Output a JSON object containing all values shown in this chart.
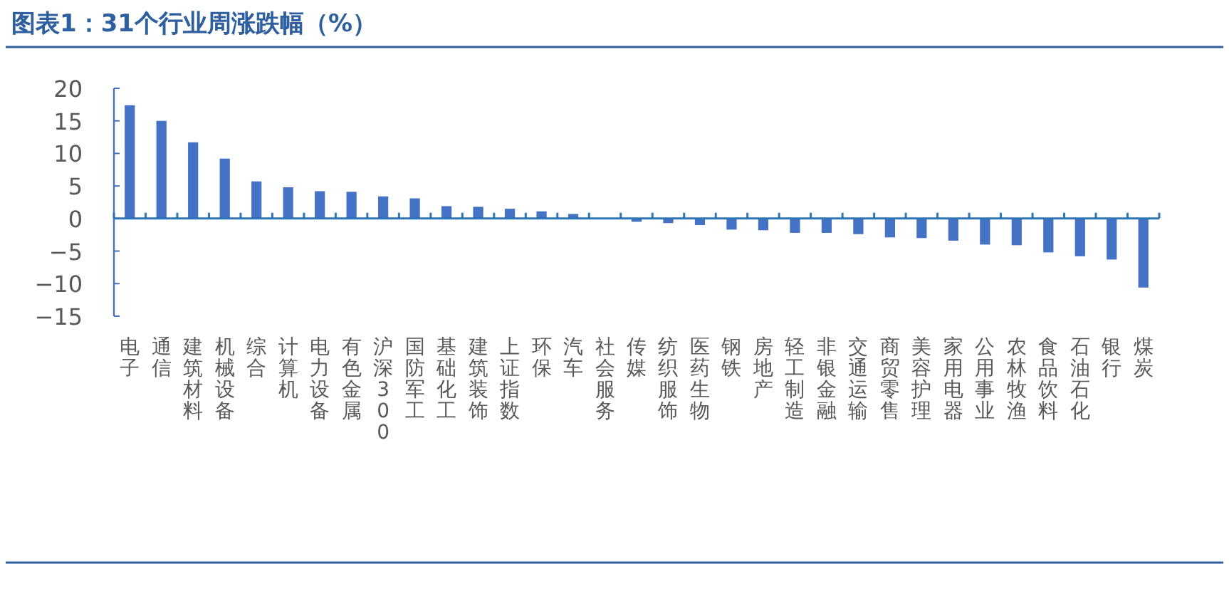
{
  "chart_data": {
    "type": "bar",
    "title": "图表1：31个行业周涨跌幅（%）",
    "categories": [
      "电子",
      "通信",
      "建筑材料",
      "机械设备",
      "综合",
      "计算机",
      "电力设备",
      "有色金属",
      "沪深300",
      "国防军工",
      "基础化工",
      "建筑装饰",
      "上证指数",
      "环保",
      "汽车",
      "社会服务",
      "传媒",
      "纺织服饰",
      "医药生物",
      "钢铁",
      "房地产",
      "轻工制造",
      "非银金融",
      "交通运输",
      "商贸零售",
      "美容护理",
      "家用电器",
      "公用事业",
      "农林牧渔",
      "食品饮料",
      "石油石化",
      "银行",
      "煤炭"
    ],
    "values": [
      17.4,
      15.0,
      11.7,
      9.2,
      5.7,
      4.8,
      4.2,
      4.1,
      3.4,
      3.1,
      1.9,
      1.8,
      1.5,
      1.1,
      0.7,
      0,
      -0.5,
      -0.7,
      -1.0,
      -1.7,
      -1.8,
      -2.2,
      -2.2,
      -2.4,
      -2.9,
      -3.0,
      -3.4,
      -4.0,
      -4.1,
      -5.2,
      -5.8,
      -6.3,
      -10.6
    ],
    "color": "#4472c4",
    "ref_lines": [
      {
        "axis": "y",
        "value": 0,
        "color": "#2e75b6"
      }
    ],
    "ylim": [
      -15,
      20
    ],
    "yticks": [
      {
        "value": -15,
        "label": "−15"
      },
      {
        "value": -10,
        "label": "−10"
      },
      {
        "value": -5,
        "label": "−5"
      },
      0,
      5,
      10,
      15,
      20
    ]
  }
}
